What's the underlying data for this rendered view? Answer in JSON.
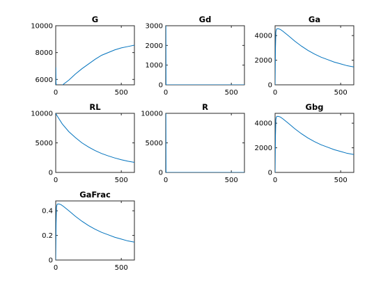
{
  "figure": {
    "background": "#ffffff",
    "line_color": "#0072bd"
  },
  "chart_data": [
    {
      "type": "line",
      "title": "G",
      "xlim": [
        0,
        600
      ],
      "ylim": [
        5600,
        10000
      ],
      "xticks": [
        0,
        500
      ],
      "yticks": [
        6000,
        8000,
        10000
      ],
      "series": [
        {
          "x": [
            0,
            1,
            2,
            4,
            8,
            20,
            40,
            60,
            100,
            150,
            200,
            250,
            300,
            350,
            400,
            450,
            500,
            550,
            600
          ],
          "y": [
            5600,
            6900,
            5800,
            5600,
            5550,
            5500,
            5500,
            5650,
            5950,
            6400,
            6800,
            7150,
            7500,
            7800,
            8000,
            8200,
            8350,
            8450,
            8550
          ]
        }
      ]
    },
    {
      "type": "line",
      "title": "Gd",
      "xlim": [
        0,
        600
      ],
      "ylim": [
        0,
        3000
      ],
      "xticks": [
        0,
        500
      ],
      "yticks": [
        0,
        1000,
        2000,
        3000
      ],
      "series": [
        {
          "x": [
            0,
            1,
            2,
            600
          ],
          "y": [
            3000,
            3000,
            0,
            0
          ]
        }
      ]
    },
    {
      "type": "line",
      "title": "Ga",
      "xlim": [
        0,
        600
      ],
      "ylim": [
        0,
        4800
      ],
      "xticks": [
        0,
        500
      ],
      "yticks": [
        0,
        2000,
        4000
      ],
      "series": [
        {
          "x": [
            0,
            3,
            6,
            10,
            15,
            25,
            40,
            60,
            100,
            150,
            200,
            250,
            300,
            350,
            400,
            450,
            500,
            550,
            600
          ],
          "y": [
            0,
            3000,
            4300,
            4500,
            4550,
            4550,
            4500,
            4350,
            4000,
            3550,
            3150,
            2800,
            2500,
            2250,
            2050,
            1850,
            1700,
            1550,
            1450
          ]
        }
      ]
    },
    {
      "type": "line",
      "title": "RL",
      "xlim": [
        0,
        600
      ],
      "ylim": [
        0,
        10000
      ],
      "xticks": [
        0,
        500
      ],
      "yticks": [
        0,
        5000,
        10000
      ],
      "series": [
        {
          "x": [
            0,
            10,
            50,
            100,
            150,
            200,
            250,
            300,
            350,
            400,
            450,
            500,
            550,
            600
          ],
          "y": [
            10000,
            9600,
            8200,
            6900,
            5900,
            5000,
            4300,
            3700,
            3200,
            2800,
            2450,
            2150,
            1900,
            1700
          ]
        }
      ]
    },
    {
      "type": "line",
      "title": "R",
      "xlim": [
        0,
        600
      ],
      "ylim": [
        0,
        10000
      ],
      "xticks": [
        0,
        500
      ],
      "yticks": [
        0,
        5000,
        10000
      ],
      "series": [
        {
          "x": [
            0,
            1,
            2,
            600
          ],
          "y": [
            10000,
            10000,
            0,
            0
          ]
        }
      ]
    },
    {
      "type": "line",
      "title": "Gbg",
      "xlim": [
        0,
        600
      ],
      "ylim": [
        0,
        4800
      ],
      "xticks": [
        0,
        500
      ],
      "yticks": [
        0,
        2000,
        4000
      ],
      "series": [
        {
          "x": [
            0,
            3,
            6,
            10,
            15,
            25,
            40,
            60,
            100,
            150,
            200,
            250,
            300,
            350,
            400,
            450,
            500,
            550,
            600
          ],
          "y": [
            0,
            3000,
            4300,
            4500,
            4550,
            4550,
            4500,
            4350,
            4000,
            3550,
            3150,
            2800,
            2500,
            2250,
            2050,
            1850,
            1700,
            1550,
            1450
          ]
        }
      ]
    },
    {
      "type": "line",
      "title": "GaFrac",
      "xlim": [
        0,
        600
      ],
      "ylim": [
        0,
        0.48
      ],
      "xticks": [
        0,
        500
      ],
      "yticks": [
        0,
        0.2,
        0.4
      ],
      "series": [
        {
          "x": [
            0,
            3,
            6,
            10,
            15,
            25,
            40,
            60,
            100,
            150,
            200,
            250,
            300,
            350,
            400,
            450,
            500,
            550,
            600
          ],
          "y": [
            0,
            0.3,
            0.43,
            0.45,
            0.455,
            0.455,
            0.45,
            0.435,
            0.4,
            0.355,
            0.315,
            0.28,
            0.25,
            0.225,
            0.205,
            0.185,
            0.17,
            0.155,
            0.145
          ]
        }
      ]
    }
  ]
}
